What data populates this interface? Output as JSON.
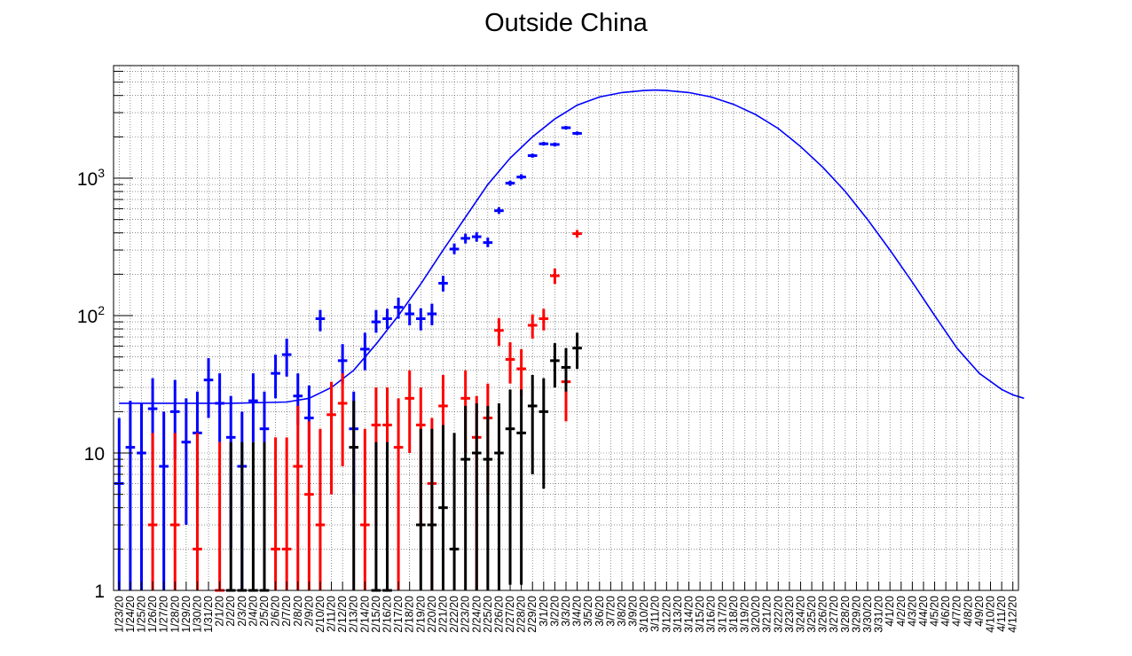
{
  "chart_data": {
    "type": "scatter",
    "title": "Outside China",
    "xlabel": "",
    "ylabel": "",
    "yscale": "log",
    "ylim": [
      1,
      6600
    ],
    "grid": true,
    "y_tick_labels": [
      {
        "value": 1,
        "base": "1",
        "exp": ""
      },
      {
        "value": 10,
        "base": "10",
        "exp": ""
      },
      {
        "value": 100,
        "base": "10",
        "exp": "2"
      },
      {
        "value": 1000,
        "base": "10",
        "exp": "3"
      }
    ],
    "categories": [
      "1/23/20",
      "1/24/20",
      "1/25/20",
      "1/26/20",
      "1/27/20",
      "1/28/20",
      "1/29/20",
      "1/30/20",
      "1/31/20",
      "2/1/20",
      "2/2/20",
      "2/3/20",
      "2/4/20",
      "2/5/20",
      "2/6/20",
      "2/7/20",
      "2/8/20",
      "2/9/20",
      "2/10/20",
      "2/11/20",
      "2/12/20",
      "2/13/20",
      "2/14/20",
      "2/15/20",
      "2/16/20",
      "2/17/20",
      "2/18/20",
      "2/19/20",
      "2/20/20",
      "2/21/20",
      "2/22/20",
      "2/23/20",
      "2/24/20",
      "2/25/20",
      "2/26/20",
      "2/27/20",
      "2/28/20",
      "2/29/20",
      "3/1/20",
      "3/2/20",
      "3/3/20",
      "3/4/20",
      "3/5/20",
      "3/6/20",
      "3/7/20",
      "3/8/20",
      "3/9/20",
      "3/10/20",
      "3/11/20",
      "3/12/20",
      "3/13/20",
      "3/14/20",
      "3/15/20",
      "3/16/20",
      "3/17/20",
      "3/18/20",
      "3/19/20",
      "3/20/20",
      "3/21/20",
      "3/22/20",
      "3/23/20",
      "3/24/20",
      "3/25/20",
      "3/26/20",
      "3/27/20",
      "3/28/20",
      "3/29/20",
      "3/30/20",
      "3/31/20",
      "4/1/20",
      "4/2/20",
      "4/3/20",
      "4/4/20",
      "4/5/20",
      "4/6/20",
      "4/7/20",
      "4/8/20",
      "4/9/20",
      "4/10/20",
      "4/11/20",
      "4/12/20"
    ],
    "series": [
      {
        "color": "#0000ff",
        "points": [
          {
            "x": 0,
            "y": 6,
            "lo": 1,
            "hi": 18
          },
          {
            "x": 1,
            "y": 11,
            "lo": 1,
            "hi": 24
          },
          {
            "x": 2,
            "y": 10,
            "lo": 1,
            "hi": 23
          },
          {
            "x": 3,
            "y": 21,
            "lo": 9,
            "hi": 35
          },
          {
            "x": 4,
            "y": 8,
            "lo": 1,
            "hi": 20
          },
          {
            "x": 5,
            "y": 20,
            "lo": 9,
            "hi": 34
          },
          {
            "x": 6,
            "y": 12,
            "lo": 3,
            "hi": 25
          },
          {
            "x": 7,
            "y": 14,
            "lo": 4,
            "hi": 28
          },
          {
            "x": 8,
            "y": 34,
            "lo": 18,
            "hi": 49
          },
          {
            "x": 9,
            "y": 23,
            "lo": 12,
            "hi": 38
          },
          {
            "x": 10,
            "y": 13,
            "lo": 2,
            "hi": 26
          },
          {
            "x": 11,
            "y": 8,
            "lo": 1,
            "hi": 20
          },
          {
            "x": 12,
            "y": 24,
            "lo": 12,
            "hi": 38
          },
          {
            "x": 13,
            "y": 15,
            "lo": 1.1,
            "hi": 28
          },
          {
            "x": 14,
            "y": 38,
            "lo": 25,
            "hi": 52
          },
          {
            "x": 15,
            "y": 52,
            "lo": 36,
            "hi": 68
          },
          {
            "x": 16,
            "y": 26,
            "lo": 16,
            "hi": 38
          },
          {
            "x": 17,
            "y": 18,
            "lo": 10,
            "hi": 31
          },
          {
            "x": 18,
            "y": 95,
            "lo": 77,
            "hi": 110
          },
          {
            "x": 20,
            "y": 47,
            "lo": 32,
            "hi": 62
          },
          {
            "x": 21,
            "y": 15,
            "lo": 5,
            "hi": 28
          },
          {
            "x": 22,
            "y": 57,
            "lo": 40,
            "hi": 75
          },
          {
            "x": 23,
            "y": 90,
            "lo": 75,
            "hi": 110
          },
          {
            "x": 24,
            "y": 95,
            "lo": 80,
            "hi": 112
          },
          {
            "x": 25,
            "y": 115,
            "lo": 95,
            "hi": 135
          },
          {
            "x": 26,
            "y": 103,
            "lo": 85,
            "hi": 122
          },
          {
            "x": 27,
            "y": 95,
            "lo": 78,
            "hi": 113
          },
          {
            "x": 28,
            "y": 103,
            "lo": 85,
            "hi": 122
          },
          {
            "x": 29,
            "y": 172,
            "lo": 150,
            "hi": 195
          },
          {
            "x": 30,
            "y": 305,
            "lo": 280,
            "hi": 335
          },
          {
            "x": 31,
            "y": 365,
            "lo": 335,
            "hi": 395
          },
          {
            "x": 32,
            "y": 375,
            "lo": 345,
            "hi": 405
          },
          {
            "x": 33,
            "y": 340,
            "lo": 315,
            "hi": 370
          },
          {
            "x": 34,
            "y": 580,
            "lo": 550,
            "hi": 615
          },
          {
            "x": 35,
            "y": 920,
            "lo": 880,
            "hi": 960
          },
          {
            "x": 36,
            "y": 1020,
            "lo": 980,
            "hi": 1070
          },
          {
            "x": 37,
            "y": 1460,
            "lo": 1410,
            "hi": 1510
          },
          {
            "x": 38,
            "y": 1780,
            "lo": 1730,
            "hi": 1840
          },
          {
            "x": 39,
            "y": 1760,
            "lo": 1700,
            "hi": 1820
          },
          {
            "x": 40,
            "y": 2330,
            "lo": 2260,
            "hi": 2400
          },
          {
            "x": 41,
            "y": 2120,
            "lo": 2060,
            "hi": 2190
          }
        ]
      },
      {
        "color": "#ff0000",
        "points": [
          {
            "x": 3,
            "y": 3,
            "lo": 1,
            "hi": 14
          },
          {
            "x": 5,
            "y": 3,
            "lo": 1,
            "hi": 14
          },
          {
            "x": 7,
            "y": 2,
            "lo": 1,
            "hi": 14
          },
          {
            "x": 9,
            "y": 1,
            "lo": 1,
            "hi": 12
          },
          {
            "x": 14,
            "y": 2,
            "lo": 1,
            "hi": 13
          },
          {
            "x": 15,
            "y": 2,
            "lo": 1,
            "hi": 13
          },
          {
            "x": 16,
            "y": 8,
            "lo": 1,
            "hi": 22
          },
          {
            "x": 17,
            "y": 5,
            "lo": 1,
            "hi": 17
          },
          {
            "x": 18,
            "y": 3,
            "lo": 1,
            "hi": 15
          },
          {
            "x": 19,
            "y": 19,
            "lo": 5,
            "hi": 33
          },
          {
            "x": 20,
            "y": 23,
            "lo": 8,
            "hi": 38
          },
          {
            "x": 22,
            "y": 3,
            "lo": 1,
            "hi": 15
          },
          {
            "x": 23,
            "y": 16,
            "lo": 3,
            "hi": 30
          },
          {
            "x": 24,
            "y": 16,
            "lo": 3,
            "hi": 30
          },
          {
            "x": 25,
            "y": 11,
            "lo": 1,
            "hi": 25
          },
          {
            "x": 26,
            "y": 25,
            "lo": 10,
            "hi": 40
          },
          {
            "x": 27,
            "y": 16,
            "lo": 3,
            "hi": 30
          },
          {
            "x": 28,
            "y": 6,
            "lo": 1,
            "hi": 18
          },
          {
            "x": 29,
            "y": 22,
            "lo": 8,
            "hi": 37
          },
          {
            "x": 31,
            "y": 25,
            "lo": 10,
            "hi": 40
          },
          {
            "x": 32,
            "y": 13,
            "lo": 1,
            "hi": 26
          },
          {
            "x": 33,
            "y": 18,
            "lo": 5,
            "hi": 32
          },
          {
            "x": 34,
            "y": 78,
            "lo": 60,
            "hi": 96
          },
          {
            "x": 35,
            "y": 48,
            "lo": 32,
            "hi": 64
          },
          {
            "x": 36,
            "y": 41,
            "lo": 26,
            "hi": 57
          },
          {
            "x": 37,
            "y": 85,
            "lo": 68,
            "hi": 102
          },
          {
            "x": 38,
            "y": 95,
            "lo": 78,
            "hi": 112
          },
          {
            "x": 39,
            "y": 195,
            "lo": 170,
            "hi": 220
          },
          {
            "x": 40,
            "y": 33,
            "lo": 17,
            "hi": 48
          },
          {
            "x": 41,
            "y": 395,
            "lo": 370,
            "hi": 420
          }
        ]
      },
      {
        "color": "#000000",
        "points": [
          {
            "x": 10,
            "y": 1,
            "lo": 1,
            "hi": 12
          },
          {
            "x": 11,
            "y": 1,
            "lo": 1,
            "hi": 12
          },
          {
            "x": 12,
            "y": 1,
            "lo": 1,
            "hi": 12
          },
          {
            "x": 13,
            "y": 1,
            "lo": 1,
            "hi": 12
          },
          {
            "x": 21,
            "y": 11,
            "lo": 1,
            "hi": 24
          },
          {
            "x": 23,
            "y": 1,
            "lo": 1,
            "hi": 12
          },
          {
            "x": 24,
            "y": 1,
            "lo": 1,
            "hi": 12
          },
          {
            "x": 27,
            "y": 3,
            "lo": 1,
            "hi": 15
          },
          {
            "x": 28,
            "y": 3,
            "lo": 1,
            "hi": 15
          },
          {
            "x": 29,
            "y": 4,
            "lo": 1,
            "hi": 16
          },
          {
            "x": 30,
            "y": 2,
            "lo": 1,
            "hi": 14
          },
          {
            "x": 31,
            "y": 9,
            "lo": 1,
            "hi": 22
          },
          {
            "x": 32,
            "y": 10,
            "lo": 1,
            "hi": 23
          },
          {
            "x": 33,
            "y": 9,
            "lo": 1,
            "hi": 22
          },
          {
            "x": 34,
            "y": 10,
            "lo": 1,
            "hi": 23
          },
          {
            "x": 35,
            "y": 15,
            "lo": 1.1,
            "hi": 29
          },
          {
            "x": 36,
            "y": 14,
            "lo": 1.1,
            "hi": 29
          },
          {
            "x": 37,
            "y": 22,
            "lo": 7,
            "hi": 37
          },
          {
            "x": 38,
            "y": 20,
            "lo": 5.5,
            "hi": 35
          },
          {
            "x": 39,
            "y": 47,
            "lo": 30,
            "hi": 63
          },
          {
            "x": 40,
            "y": 42,
            "lo": 28,
            "hi": 58
          },
          {
            "x": 41,
            "y": 58,
            "lo": 41,
            "hi": 75
          }
        ]
      }
    ],
    "fit_curve": {
      "color": "#0000ff",
      "points": [
        [
          0,
          23
        ],
        [
          5,
          23
        ],
        [
          10,
          23
        ],
        [
          15,
          23.5
        ],
        [
          17,
          25
        ],
        [
          19,
          30
        ],
        [
          21,
          40
        ],
        [
          23,
          62
        ],
        [
          25,
          100
        ],
        [
          27,
          170
        ],
        [
          29,
          300
        ],
        [
          31,
          520
        ],
        [
          33,
          900
        ],
        [
          35,
          1400
        ],
        [
          37,
          2000
        ],
        [
          39,
          2700
        ],
        [
          41,
          3400
        ],
        [
          43,
          3900
        ],
        [
          45,
          4200
        ],
        [
          47,
          4350
        ],
        [
          48,
          4380
        ],
        [
          49,
          4350
        ],
        [
          51,
          4200
        ],
        [
          53,
          3900
        ],
        [
          55,
          3450
        ],
        [
          57,
          2900
        ],
        [
          59,
          2300
        ],
        [
          61,
          1700
        ],
        [
          63,
          1200
        ],
        [
          65,
          800
        ],
        [
          67,
          500
        ],
        [
          69,
          300
        ],
        [
          71,
          175
        ],
        [
          73,
          100
        ],
        [
          75,
          58
        ],
        [
          77,
          38
        ],
        [
          79,
          29
        ],
        [
          80,
          26.5
        ],
        [
          81,
          25
        ]
      ]
    }
  }
}
